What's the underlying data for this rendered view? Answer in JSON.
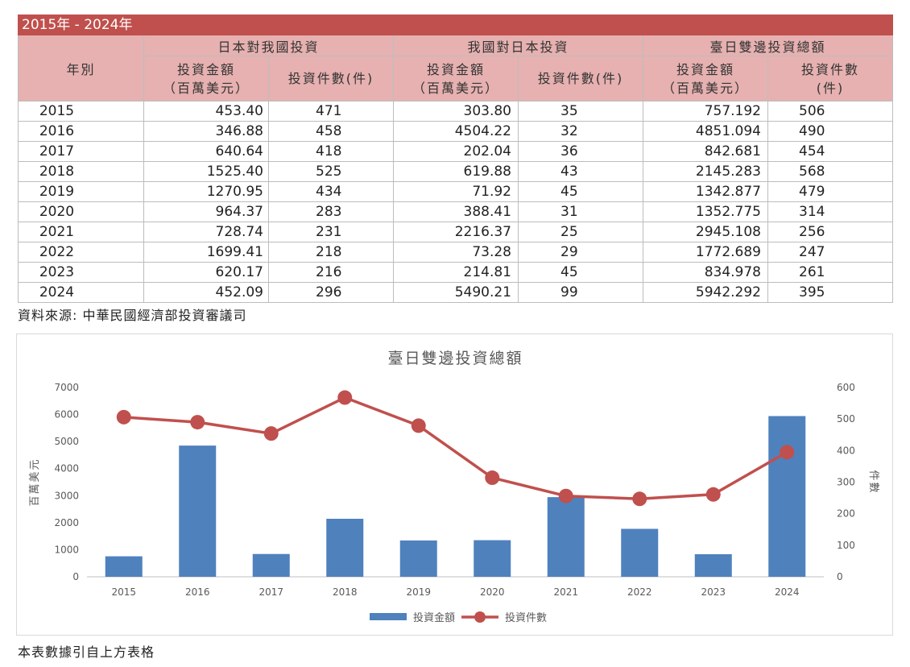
{
  "table": {
    "title": "2015年 - 2024年",
    "year_header": "年別",
    "groups": [
      "日本對我國投資",
      "我國對日本投資",
      "臺日雙邊投資總額"
    ],
    "sub_amount_line1": "投資金額",
    "sub_amount_line2": "（百萬美元）",
    "sub_count": "投資件數(件)",
    "sub_count_line1": "投資件數",
    "sub_count_line2": "(件)",
    "rows": [
      {
        "year": "2015",
        "jp_amt": "453.40",
        "jp_cnt": "471",
        "tw_amt": "303.80",
        "tw_cnt": "35",
        "tot_amt": "757.192",
        "tot_cnt": "506"
      },
      {
        "year": "2016",
        "jp_amt": "346.88",
        "jp_cnt": "458",
        "tw_amt": "4504.22",
        "tw_cnt": "32",
        "tot_amt": "4851.094",
        "tot_cnt": "490"
      },
      {
        "year": "2017",
        "jp_amt": "640.64",
        "jp_cnt": "418",
        "tw_amt": "202.04",
        "tw_cnt": "36",
        "tot_amt": "842.681",
        "tot_cnt": "454"
      },
      {
        "year": "2018",
        "jp_amt": "1525.40",
        "jp_cnt": "525",
        "tw_amt": "619.88",
        "tw_cnt": "43",
        "tot_amt": "2145.283",
        "tot_cnt": "568"
      },
      {
        "year": "2019",
        "jp_amt": "1270.95",
        "jp_cnt": "434",
        "tw_amt": "71.92",
        "tw_cnt": "45",
        "tot_amt": "1342.877",
        "tot_cnt": "479"
      },
      {
        "year": "2020",
        "jp_amt": "964.37",
        "jp_cnt": "283",
        "tw_amt": "388.41",
        "tw_cnt": "31",
        "tot_amt": "1352.775",
        "tot_cnt": "314"
      },
      {
        "year": "2021",
        "jp_amt": "728.74",
        "jp_cnt": "231",
        "tw_amt": "2216.37",
        "tw_cnt": "25",
        "tot_amt": "2945.108",
        "tot_cnt": "256"
      },
      {
        "year": "2022",
        "jp_amt": "1699.41",
        "jp_cnt": "218",
        "tw_amt": "73.28",
        "tw_cnt": "29",
        "tot_amt": "1772.689",
        "tot_cnt": "247"
      },
      {
        "year": "2023",
        "jp_amt": "620.17",
        "jp_cnt": "216",
        "tw_amt": "214.81",
        "tw_cnt": "45",
        "tot_amt": "834.978",
        "tot_cnt": "261"
      },
      {
        "year": "2024",
        "jp_amt": "452.09",
        "jp_cnt": "296",
        "tw_amt": "5490.21",
        "tw_cnt": "99",
        "tot_amt": "5942.292",
        "tot_cnt": "395"
      }
    ]
  },
  "source": "資料來源: 中華民國經濟部投資審議司",
  "note": "本表數據引自上方表格",
  "colors": {
    "header_dark": "#c0504d",
    "header_light": "#e6b1b0",
    "bar": "#4f81bd",
    "line": "#c0504d"
  },
  "chart_data": {
    "type": "bar",
    "title": "臺日雙邊投資總額",
    "categories": [
      "2015",
      "2016",
      "2017",
      "2018",
      "2019",
      "2020",
      "2021",
      "2022",
      "2023",
      "2024"
    ],
    "series": [
      {
        "name": "投資金額",
        "type": "bar",
        "axis": "left",
        "values": [
          757.192,
          4851.094,
          842.681,
          2145.283,
          1342.877,
          1352.775,
          2945.108,
          1772.689,
          834.978,
          5942.292
        ]
      },
      {
        "name": "投資件數",
        "type": "line",
        "axis": "right",
        "values": [
          506,
          490,
          454,
          568,
          479,
          314,
          256,
          247,
          261,
          395
        ]
      }
    ],
    "ylabel": "百萬美元",
    "y2label": "件數",
    "ylim": [
      0,
      7000
    ],
    "y2lim": [
      0,
      600
    ],
    "yticks": [
      "0",
      "1000",
      "2000",
      "3000",
      "4000",
      "5000",
      "6000",
      "7000"
    ],
    "y2ticks": [
      "0",
      "100",
      "200",
      "300",
      "400",
      "500",
      "600"
    ],
    "grid": false,
    "legend": "bottom"
  }
}
